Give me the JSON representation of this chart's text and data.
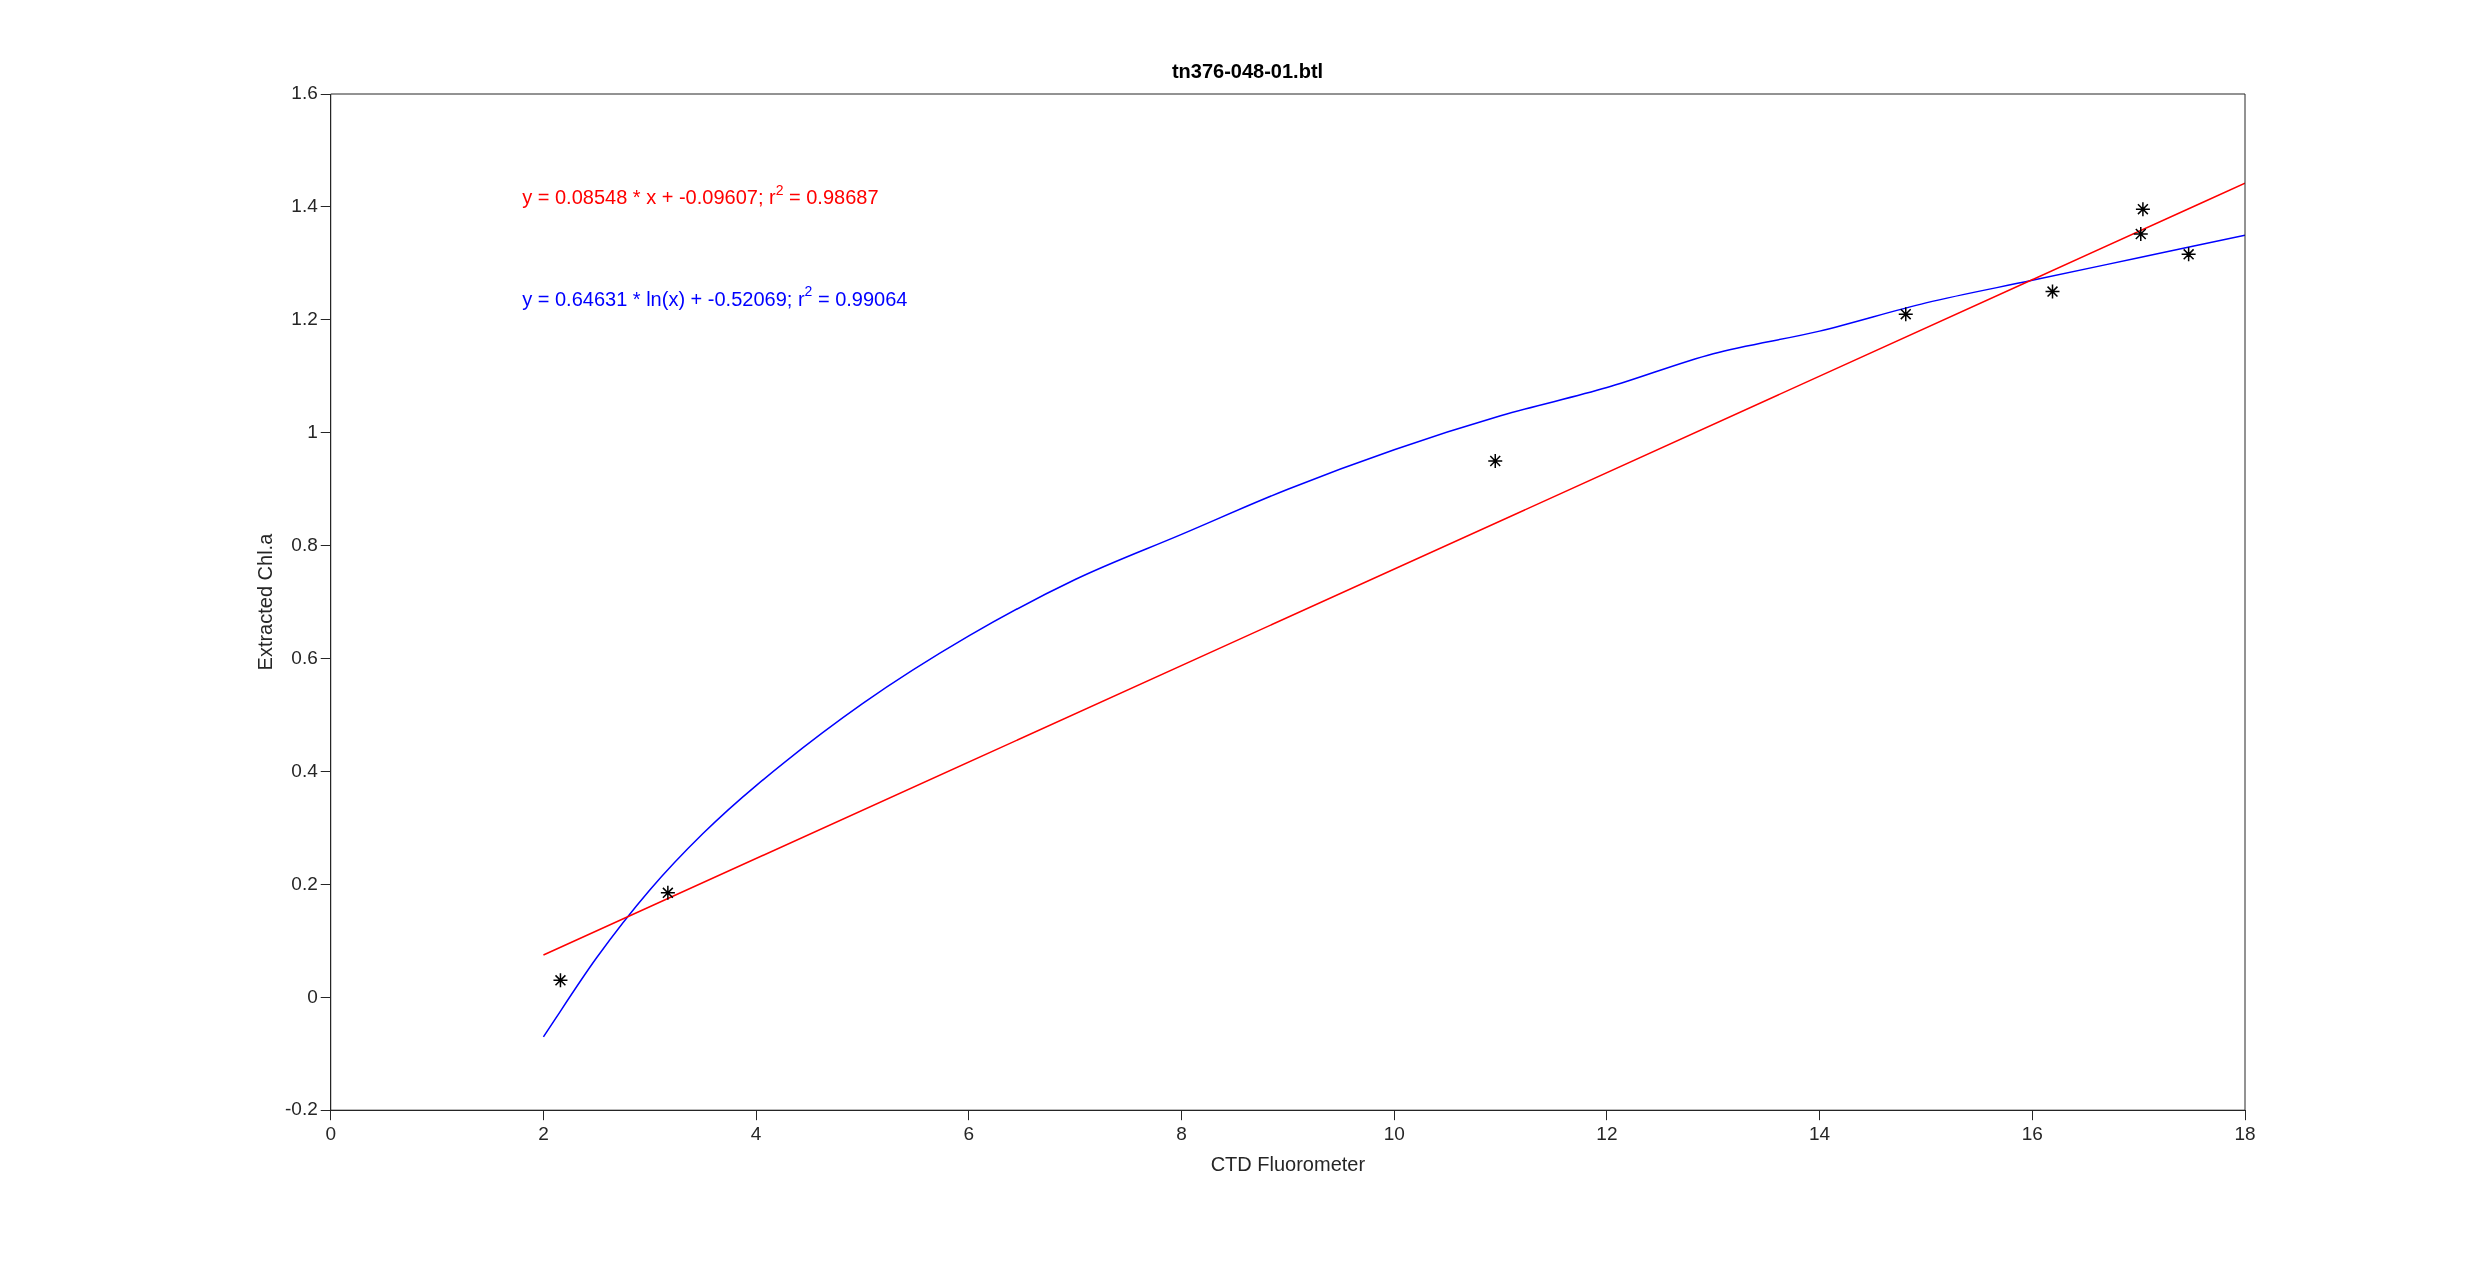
{
  "chart_data": {
    "type": "scatter",
    "title": "tn376-048-01.btl",
    "xlabel": "CTD Fluorometer",
    "ylabel": "Extracted Chl.a",
    "annotations": [
      "y = 0.08548 * x + -0.09607; r$^{2}$ = 0.98687",
      "y = 0.64631 * ln(x) + -0.52069; r$^{2}$ = 0.99064"
    ],
    "series": [
      {
        "type": "scatter",
        "color": "#000000",
        "marker": "cross",
        "x": [
          2.16,
          3.17,
          10.95,
          14.81,
          16.19,
          17.04,
          17.02,
          17.47
        ],
        "values": [
          0.03,
          0.185,
          0.95,
          1.21,
          1.25,
          1.396,
          1.352,
          1.316
        ]
      },
      {
        "type": "line",
        "color": "#ff0000",
        "marker": "none",
        "x": [
          2,
          18
        ],
        "values": [
          0.075,
          1.442
        ]
      },
      {
        "type": "line",
        "color": "#0000ff",
        "marker": "none",
        "x": [
          2,
          2.5,
          3,
          3.5,
          4,
          5,
          6,
          7,
          8,
          9,
          10,
          11,
          12,
          13,
          14,
          15,
          16,
          17,
          18
        ],
        "values": [
          -0.07,
          0.07,
          0.19,
          0.29,
          0.375,
          0.52,
          0.64,
          0.74,
          0.82,
          0.9,
          0.97,
          1.03,
          1.08,
          1.14,
          1.18,
          1.23,
          1.27,
          1.31,
          1.35
        ]
      }
    ],
    "xlim": [
      0,
      18
    ],
    "xticks": [
      0,
      2,
      4,
      6,
      8,
      10,
      12,
      14,
      16,
      18
    ],
    "ylim": [
      -0.2,
      1.6
    ],
    "yticks": [
      -0.2,
      0,
      0.2,
      0.4,
      0.6,
      0.8,
      1,
      1.2,
      1.4,
      1.6
    ],
    "grid": false,
    "legend": false
  }
}
